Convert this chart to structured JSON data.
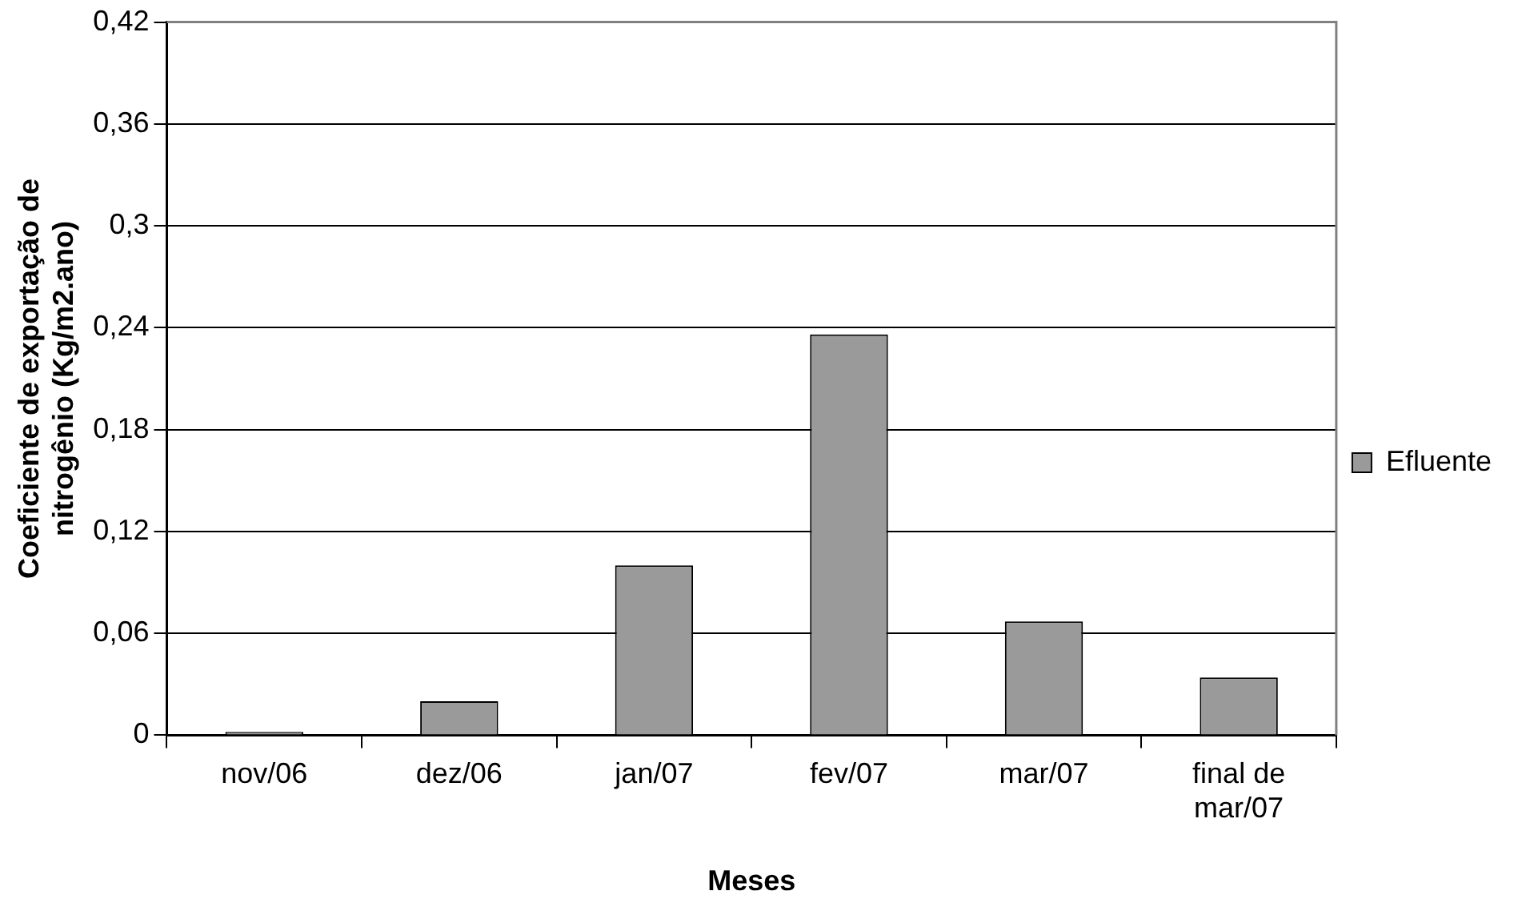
{
  "chart_data": {
    "type": "bar",
    "xlabel": "Meses",
    "ylabel": "Coeficiente de exportação de nitrogênio (Kg/m2.ano)",
    "categories": [
      "nov/06",
      "dez/06",
      "jan/07",
      "fev/07",
      "mar/07",
      "final de mar/07"
    ],
    "series": [
      {
        "name": "Efluente",
        "color": "#9a9a9a",
        "values": [
          0.002,
          0.02,
          0.1,
          0.236,
          0.067,
          0.034
        ]
      }
    ],
    "ylim": [
      0,
      0.42
    ],
    "yticks": [
      0,
      {
        "value": 0.06,
        "label": "0,06"
      },
      {
        "value": 0.12,
        "label": "0,12"
      },
      {
        "value": 0.18,
        "label": "0,18"
      },
      {
        "value": 0.24,
        "label": "0,24"
      },
      {
        "value": 0.3,
        "label": "0,3"
      },
      {
        "value": 0.36,
        "label": "0,36"
      },
      {
        "value": 0.42,
        "label": "0,42"
      }
    ],
    "grid": "y",
    "legend": "right"
  }
}
